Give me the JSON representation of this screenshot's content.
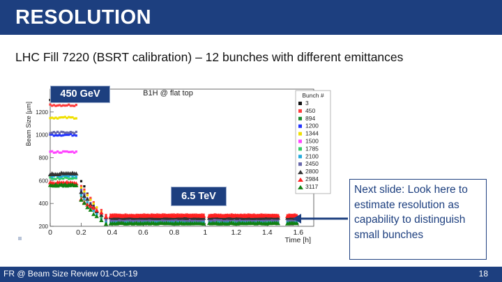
{
  "slide": {
    "title": "RESOLUTION",
    "subtitle": "LHC Fill 7220 (BSRT calibration) – 12 bunches with different emittances",
    "label_injection": "450 GeV",
    "label_flattop": "6.5 TeV",
    "note": "Next slide: Look here to estimate resolution as capability to distinguish small bunches",
    "footer": "FR @ Beam Size Review 01-Oct-19",
    "page_number": "18"
  },
  "chart_data": {
    "type": "scatter",
    "title": "B1H @ flat top",
    "xlabel": "Time [h]",
    "ylabel": "Beam Size [µm]",
    "xlim": [
      0,
      1.7
    ],
    "ylim": [
      200,
      1400
    ],
    "xticks": [
      "0",
      "0.2",
      "0.4",
      "0.6",
      "0.8",
      "1",
      "1.2",
      "1.4",
      "1.6"
    ],
    "yticks": [
      "200",
      "400",
      "600",
      "800",
      "1000",
      "1200"
    ],
    "legend_title": "Bunch #",
    "legend_position": "right",
    "series": [
      {
        "name": "3",
        "color": "#111111",
        "marker": "square",
        "inj": 1305,
        "mid": 600,
        "flat": 222
      },
      {
        "name": "450",
        "color": "#ff3b3b",
        "marker": "square",
        "inj": 1260,
        "mid": 560,
        "flat": 300
      },
      {
        "name": "894",
        "color": "#1c8a2e",
        "marker": "square",
        "inj": 555,
        "mid": 460,
        "flat": 238
      },
      {
        "name": "1200",
        "color": "#2233ff",
        "marker": "square",
        "inj": 1000,
        "mid": 520,
        "flat": 258
      },
      {
        "name": "1344",
        "color": "#f0e000",
        "marker": "square",
        "inj": 1150,
        "mid": 540,
        "flat": 282
      },
      {
        "name": "1500",
        "color": "#ff44ff",
        "marker": "square",
        "inj": 850,
        "mid": 500,
        "flat": 266
      },
      {
        "name": "1785",
        "color": "#33cc66",
        "marker": "square",
        "inj": 620,
        "mid": 470,
        "flat": 245
      },
      {
        "name": "2100",
        "color": "#22aadd",
        "marker": "square",
        "inj": 640,
        "mid": 480,
        "flat": 232
      },
      {
        "name": "2450",
        "color": "#6666aa",
        "marker": "square",
        "inj": 1020,
        "mid": 525,
        "flat": 252
      },
      {
        "name": "2800",
        "color": "#333333",
        "marker": "triangle",
        "inj": 660,
        "mid": 490,
        "flat": 275
      },
      {
        "name": "2984",
        "color": "#ff2020",
        "marker": "triangle",
        "inj": 580,
        "mid": 440,
        "flat": 292
      },
      {
        "name": "3117",
        "color": "#108010",
        "marker": "triangle",
        "inj": 560,
        "mid": 430,
        "flat": 226
      }
    ]
  }
}
